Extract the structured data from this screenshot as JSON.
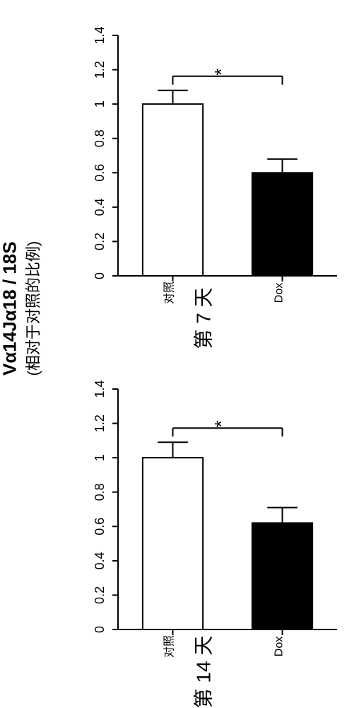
{
  "rotated_main_title": "Vα14Jα18 / 18S",
  "rotated_sub_title": "(相对于对照的比例)",
  "charts": [
    {
      "caption": "第 7 天",
      "sig_label": "*",
      "ylim": [
        0,
        1.4
      ],
      "ytick_step": 0.2,
      "yticks": [
        "0",
        "0.2",
        "0.4",
        "0.6",
        "0.8",
        "1",
        "1.2",
        "1.4"
      ],
      "categories": [
        "对照",
        "Dox"
      ],
      "values": [
        1.0,
        0.6
      ],
      "errors": [
        0.08,
        0.08
      ],
      "bar_fill": [
        "#ffffff",
        "#000000"
      ],
      "bar_stroke": "#000000",
      "bar_width": 0.55,
      "background_color": "#ffffff",
      "axis_color": "#000000",
      "tick_fontsize": 18,
      "cat_fontsize": 16
    },
    {
      "caption": "第 14 天",
      "sig_label": "*",
      "ylim": [
        0,
        1.4
      ],
      "ytick_step": 0.2,
      "yticks": [
        "0",
        "0.2",
        "0.4",
        "0.6",
        "0.8",
        "1",
        "1.2",
        "1.4"
      ],
      "categories": [
        "对照",
        "Dox"
      ],
      "values": [
        1.0,
        0.62
      ],
      "errors": [
        0.09,
        0.09
      ],
      "bar_fill": [
        "#ffffff",
        "#000000"
      ],
      "bar_stroke": "#000000",
      "bar_width": 0.55,
      "background_color": "#ffffff",
      "axis_color": "#000000",
      "tick_fontsize": 18,
      "cat_fontsize": 16
    }
  ]
}
